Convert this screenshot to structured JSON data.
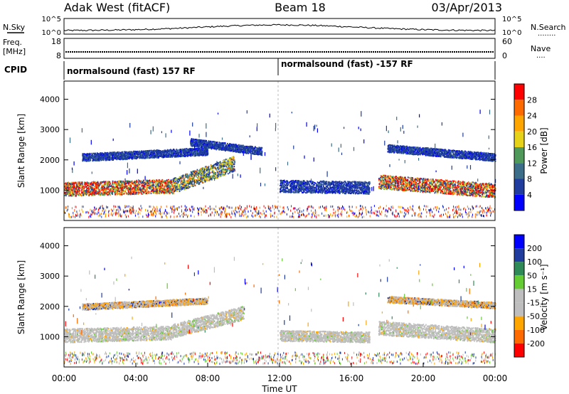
{
  "header": {
    "station": "Adak West (fitACF)",
    "beam": "Beam 18",
    "date": "03/Apr/2013"
  },
  "top_panels": {
    "nsky_label": "N.Sky",
    "nsearch_label": "N.Search",
    "nsearch_dots": "........",
    "noise_ticks_left": [
      "10^5",
      "10^0"
    ],
    "noise_ticks_right": [
      "10^5",
      "10^0"
    ],
    "freq_label": "Freq.",
    "freq_unit": "[MHz]",
    "freq_ticks": [
      "18",
      "8"
    ],
    "nave_label": "Nave",
    "nave_dots": "....",
    "nave_ticks": [
      "60",
      "0"
    ],
    "cpid_label": "CPID",
    "cpid_segments": [
      {
        "label": "normalsound (fast) 157 RF",
        "start_hour": 0
      },
      {
        "label": "normalsound (fast) -157 RF",
        "start_hour": 12
      }
    ]
  },
  "colors": {
    "power_scale": [
      "#0000ff",
      "#1f3c9e",
      "#3c6e8a",
      "#4f9a5a",
      "#e6d219",
      "#ffa500",
      "#ff6a00",
      "#ff0000"
    ],
    "velocity_scale": [
      "#ff0000",
      "#ff6a00",
      "#ffa500",
      "#bebebe",
      "#bebebe",
      "#66cc33",
      "#2e8b57",
      "#1f3c9e",
      "#0000ff"
    ],
    "noise_trace": "#000000"
  },
  "chart_data": [
    {
      "type": "heatmap",
      "name_hint": "power",
      "ylabel": "Slant Range [km]",
      "ylim": [
        0,
        4600
      ],
      "yticks": [
        1000,
        2000,
        3000,
        4000
      ],
      "xlim": [
        0,
        24
      ],
      "colorbar_label": "Power [dB]",
      "colorbar_ticks": [
        "28",
        "24",
        "20",
        "16",
        "12",
        "8",
        "4"
      ],
      "colorbar_range": [
        0,
        32
      ],
      "bands": [
        {
          "from_hour": 0,
          "to_hour": 6,
          "center_km": [
            1050,
            1150
          ],
          "width_km": 450,
          "level": "high"
        },
        {
          "from_hour": 6,
          "to_hour": 9.5,
          "center_km": [
            1150,
            1900
          ],
          "width_km": 500,
          "level": "medium"
        },
        {
          "from_hour": 1,
          "to_hour": 8,
          "center_km": [
            2100,
            2300
          ],
          "width_km": 250,
          "level": "low"
        },
        {
          "from_hour": 7,
          "to_hour": 11,
          "center_km": [
            2600,
            2300
          ],
          "width_km": 250,
          "level": "low"
        },
        {
          "from_hour": 12,
          "to_hour": 17,
          "center_km": [
            1150,
            1100
          ],
          "width_km": 400,
          "level": "low"
        },
        {
          "from_hour": 17.5,
          "to_hour": 24,
          "center_km": [
            1300,
            1000
          ],
          "width_km": 450,
          "level": "high"
        },
        {
          "from_hour": 18,
          "to_hour": 24,
          "center_km": [
            2400,
            2100
          ],
          "width_km": 250,
          "level": "low"
        }
      ]
    },
    {
      "type": "heatmap",
      "name_hint": "velocity",
      "ylabel": "Slant Range [km]",
      "ylim": [
        0,
        4600
      ],
      "yticks": [
        1000,
        2000,
        3000,
        4000
      ],
      "xlim": [
        0,
        24
      ],
      "xlabel": "Time UT",
      "xticks": [
        "00:00",
        "04:00",
        "08:00",
        "12:00",
        "16:00",
        "20:00",
        "00:00"
      ],
      "colorbar_label": "Velocity [m s⁻¹]",
      "colorbar_ticks": [
        "200",
        "100",
        "50",
        "15",
        "-15",
        "-50",
        "-100",
        "-200"
      ],
      "bands": [
        {
          "from_hour": 0,
          "to_hour": 6,
          "center_km": [
            1050,
            1150
          ],
          "width_km": 450,
          "level": "ground"
        },
        {
          "from_hour": 6,
          "to_hour": 10,
          "center_km": [
            1200,
            1800
          ],
          "width_km": 450,
          "level": "ground"
        },
        {
          "from_hour": 1,
          "to_hour": 8,
          "center_km": [
            2000,
            2200
          ],
          "width_km": 200,
          "level": "mixed"
        },
        {
          "from_hour": 12,
          "to_hour": 17,
          "center_km": [
            1050,
            1000
          ],
          "width_km": 350,
          "level": "ground"
        },
        {
          "from_hour": 17.5,
          "to_hour": 24,
          "center_km": [
            1300,
            1050
          ],
          "width_km": 450,
          "level": "ground"
        },
        {
          "from_hour": 18,
          "to_hour": 24,
          "center_km": [
            2250,
            2050
          ],
          "width_km": 200,
          "level": "mixed"
        }
      ]
    }
  ]
}
